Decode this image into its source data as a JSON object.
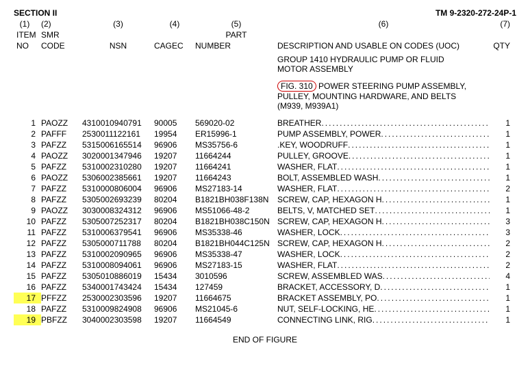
{
  "header": {
    "section": "SECTION II",
    "tm": "TM 9-2320-272-24P-1"
  },
  "col_nums": {
    "c1": "(1)",
    "c2": "(2)",
    "c3": "(3)",
    "c4": "(4)",
    "c5": "(5)",
    "c6": "(6)",
    "c7": "(7)"
  },
  "col_labels_1": {
    "item": "ITEM",
    "smr": "SMR",
    "nsn": "",
    "cagec": "",
    "part": "PART",
    "desc": "",
    "qty": ""
  },
  "col_labels_2": {
    "item": "NO",
    "smr": "CODE",
    "nsn": "NSN",
    "cagec": "CAGEC",
    "part": "NUMBER",
    "desc": "DESCRIPTION AND USABLE ON CODES (UOC)",
    "qty": "QTY"
  },
  "group": {
    "line1": "GROUP 1410 HYDRAULIC PUMP OR FLUID",
    "line2": "MOTOR ASSEMBLY",
    "fig_label": "FIG. 310",
    "fig_rest": " POWER STEERING PUMP ASSEMBLY,",
    "fig2": "PULLEY, MOUNTING HARDWARE, AND BELTS",
    "fig3": "(M939, M939A1)"
  },
  "rows": [
    {
      "item": "1",
      "smr": "PAOZZ",
      "nsn": "4310010940791",
      "cagec": "90005",
      "part": "569020-02",
      "desc": "BREATHER ",
      "qty": "1",
      "hl": false
    },
    {
      "item": "2",
      "smr": "PAFFF",
      "nsn": "2530011122161",
      "cagec": "19954",
      "part": "ER15996-1",
      "desc": "PUMP ASSEMBLY, POWER ",
      "qty": "1",
      "hl": false
    },
    {
      "item": "3",
      "smr": "PAFZZ",
      "nsn": "5315006165514",
      "cagec": "96906",
      "part": "MS35756-6",
      "desc": ".KEY, WOODRUFF ",
      "qty": "1",
      "hl": false
    },
    {
      "item": "4",
      "smr": "PAOZZ",
      "nsn": "3020001347946",
      "cagec": "19207",
      "part": "11664244",
      "desc": "PULLEY, GROOVE ",
      "qty": "1",
      "hl": false
    },
    {
      "item": "5",
      "smr": "PAFZZ",
      "nsn": "5310002310280",
      "cagec": "19207",
      "part": "11664241",
      "desc": "WASHER, FLAT ",
      "qty": "1",
      "hl": false
    },
    {
      "item": "6",
      "smr": "PAOZZ",
      "nsn": "5306002385661",
      "cagec": "19207",
      "part": "11664243",
      "desc": "BOLT, ASSEMBLED WASH ",
      "qty": "1",
      "hl": false
    },
    {
      "item": "7",
      "smr": "PAFZZ",
      "nsn": "5310000806004",
      "cagec": "96906",
      "part": "MS27183-14",
      "desc": "WASHER, FLAT ",
      "qty": "2",
      "hl": false
    },
    {
      "item": "8",
      "smr": "PAFZZ",
      "nsn": "5305002693239",
      "cagec": "80204",
      "part": "B1821BH038F138N",
      "desc": "SCREW, CAP, HEXAGON H ",
      "qty": "1",
      "hl": false
    },
    {
      "item": "9",
      "smr": "PAOZZ",
      "nsn": "3030008324312",
      "cagec": "96906",
      "part": "MS51066-48-2",
      "desc": "BELTS, V, MATCHED SET ",
      "qty": "1",
      "hl": false
    },
    {
      "item": "10",
      "smr": "PAFZZ",
      "nsn": "5305007252317",
      "cagec": "80204",
      "part": "B1821BH038C150N",
      "desc": "SCREW, CAP, HEXAGON H ",
      "qty": "3",
      "hl": false
    },
    {
      "item": "11",
      "smr": "PAFZZ",
      "nsn": "5310006379541",
      "cagec": "96906",
      "part": "MS35338-46",
      "desc": "WASHER, LOCK ",
      "qty": "3",
      "hl": false
    },
    {
      "item": "12",
      "smr": "PAFZZ",
      "nsn": "5305000711788",
      "cagec": "80204",
      "part": "B1821BH044C125N",
      "desc": "SCREW, CAP, HEXAGON H ",
      "qty": "2",
      "hl": false
    },
    {
      "item": "13",
      "smr": "PAFZZ",
      "nsn": "5310002090965",
      "cagec": "96906",
      "part": "MS35338-47",
      "desc": "WASHER, LOCK ",
      "qty": "2",
      "hl": false
    },
    {
      "item": "14",
      "smr": "PAFZZ",
      "nsn": "5310008094061",
      "cagec": "96906",
      "part": "MS27183-15",
      "desc": "WASHER, FLAT ",
      "qty": "2",
      "hl": false
    },
    {
      "item": "15",
      "smr": "PAFZZ",
      "nsn": "5305010886019",
      "cagec": "15434",
      "part": "3010596",
      "desc": "SCREW, ASSEMBLED WAS ",
      "qty": "4",
      "hl": false
    },
    {
      "item": "16",
      "smr": "PAFZZ",
      "nsn": "5340001743424",
      "cagec": "15434",
      "part": "127459",
      "desc": "BRACKET, ACCESSORY, D ",
      "qty": "1",
      "hl": false
    },
    {
      "item": "17",
      "smr": "PFFZZ",
      "nsn": "2530002303596",
      "cagec": "19207",
      "part": "11664675",
      "desc": "BRACKET ASSEMBLY, PO ",
      "qty": "1",
      "hl": true
    },
    {
      "item": "18",
      "smr": "PAFZZ",
      "nsn": "5310009824908",
      "cagec": "96906",
      "part": "MS21045-6",
      "desc": "NUT, SELF-LOCKING, HE ",
      "qty": "1",
      "hl": false
    },
    {
      "item": "19",
      "smr": "PBFZZ",
      "nsn": "3040002303598",
      "cagec": "19207",
      "part": "11664549",
      "desc": "CONNECTING LINK, RIG ",
      "qty": "1",
      "hl": true
    }
  ],
  "footer": "END OF FIGURE"
}
